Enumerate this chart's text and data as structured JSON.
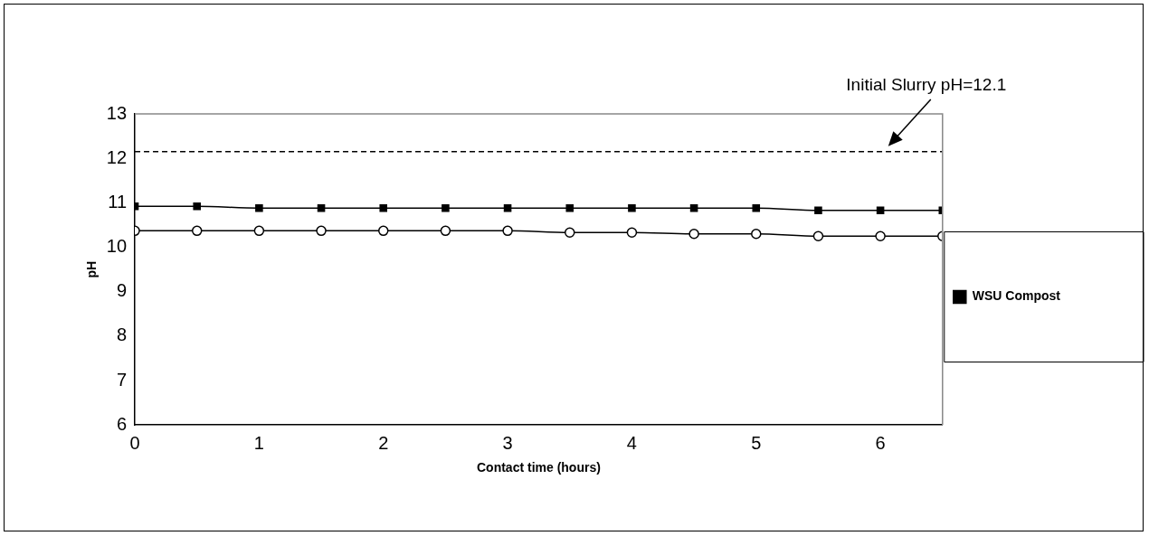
{
  "chart_data": {
    "type": "line",
    "xlabel": "Contact time (hours)",
    "ylabel": "pH",
    "x": [
      0,
      0.5,
      1,
      1.5,
      2,
      2.5,
      3,
      3.5,
      4,
      4.5,
      5,
      5.5,
      6,
      6.5
    ],
    "series": [
      {
        "color": "#000000",
        "marker": "circle",
        "values": [
          10.37,
          10.37,
          10.37,
          10.37,
          10.37,
          10.37,
          10.37,
          10.33,
          10.33,
          10.3,
          10.3,
          10.25,
          10.25,
          10.25
        ]
      },
      {
        "name": "WSU Compost",
        "color": "#000000",
        "marker": "square",
        "values": [
          10.92,
          10.92,
          10.88,
          10.88,
          10.88,
          10.88,
          10.88,
          10.88,
          10.88,
          10.88,
          10.88,
          10.83,
          10.83,
          10.83
        ]
      }
    ],
    "xlim": [
      0,
      6.5
    ],
    "xticks": [
      0,
      1,
      2,
      3,
      4,
      5,
      6
    ],
    "ylim": [
      6,
      13
    ],
    "yticks": [
      6,
      7,
      8,
      9,
      10,
      11,
      12,
      13
    ],
    "ref_lines": [
      {
        "axis": "y",
        "value": 12.15,
        "line_style": "dashed",
        "color": "#000000"
      }
    ],
    "annotations": [
      "Initial Slurry pH=12.1"
    ],
    "grid": false,
    "legend": "right"
  }
}
